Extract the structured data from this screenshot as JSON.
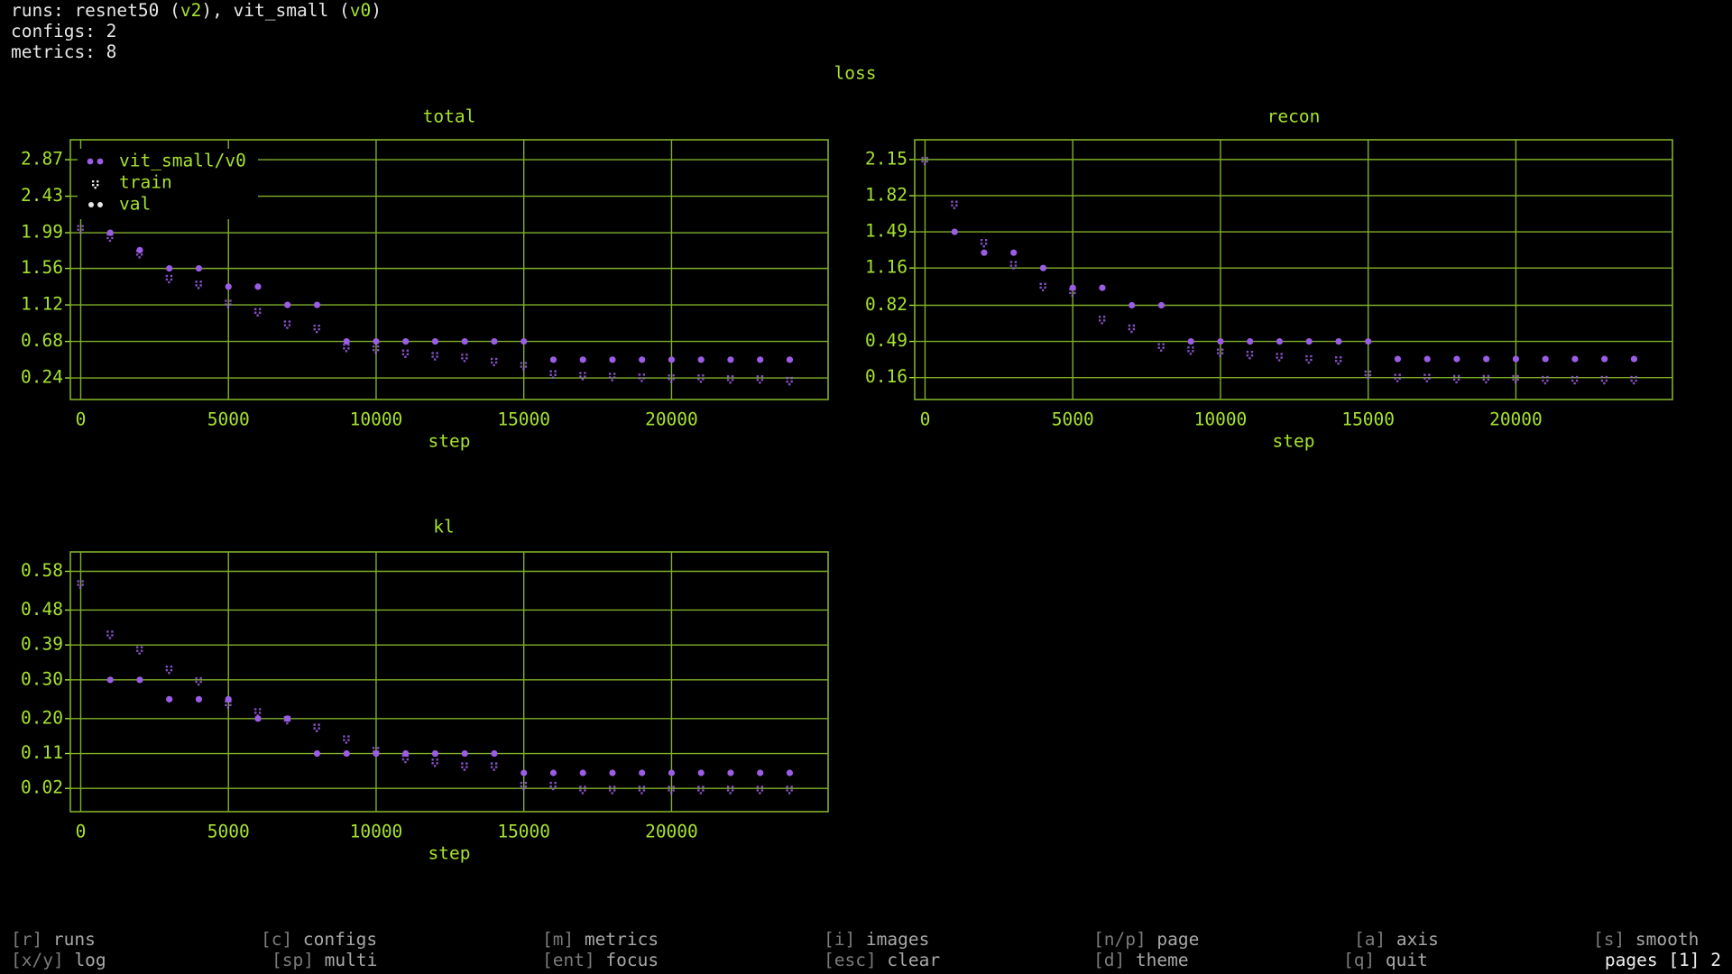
{
  "header": {
    "runs": [
      "runs: resnet50 (",
      "v2",
      "), vit_small (",
      "v0",
      ")"
    ],
    "configs": {
      "label": "configs:",
      "value": 2
    },
    "metrics": {
      "label": "metrics:",
      "value": 8
    }
  },
  "section_title": "loss",
  "chart_data": [
    {
      "type": "scatter",
      "title": "total",
      "xlabel": "step",
      "xlim": [
        -350,
        25300
      ],
      "xticks": [
        0,
        5000,
        10000,
        15000,
        20000
      ],
      "ylim": [
        -0.02,
        3.11
      ],
      "yticks": [
        2.87,
        2.43,
        1.99,
        1.56,
        1.12,
        0.68,
        0.24
      ],
      "grid": true,
      "legend": "upper left",
      "legend_title": "vit_small/v0",
      "series": [
        {
          "name": "train",
          "color": "#9b5de5",
          "x": [
            0,
            1000,
            2000,
            3000,
            4000,
            5000,
            6000,
            7000,
            8000,
            9000,
            10000,
            11000,
            12000,
            13000,
            14000,
            15000,
            16000,
            17000,
            18000,
            19000,
            20000,
            21000,
            22000,
            23000,
            24000
          ],
          "values": [
            2.05,
            1.95,
            1.75,
            1.45,
            1.38,
            1.15,
            1.05,
            0.9,
            0.85,
            0.62,
            0.6,
            0.55,
            0.52,
            0.5,
            0.45,
            0.4,
            0.3,
            0.28,
            0.27,
            0.26,
            0.25,
            0.25,
            0.24,
            0.24,
            0.22
          ]
        },
        {
          "name": "val",
          "color": "#9b5de5",
          "x": [
            1000,
            2000,
            3000,
            4000,
            5000,
            6000,
            7000,
            8000,
            9000,
            10000,
            11000,
            12000,
            13000,
            14000,
            15000,
            16000,
            17000,
            18000,
            19000,
            20000,
            21000,
            22000,
            23000,
            24000
          ],
          "values": [
            1.99,
            1.78,
            1.56,
            1.56,
            1.34,
            1.34,
            1.12,
            1.12,
            0.68,
            0.68,
            0.68,
            0.68,
            0.68,
            0.68,
            0.68,
            0.46,
            0.46,
            0.46,
            0.46,
            0.46,
            0.46,
            0.46,
            0.46,
            0.46
          ]
        }
      ]
    },
    {
      "type": "scatter",
      "title": "recon",
      "xlabel": "step",
      "xlim": [
        -350,
        25300
      ],
      "xticks": [
        0,
        5000,
        10000,
        15000,
        20000
      ],
      "ylim": [
        -0.04,
        2.33
      ],
      "yticks": [
        2.15,
        1.82,
        1.49,
        1.16,
        0.82,
        0.49,
        0.16
      ],
      "grid": true,
      "series": [
        {
          "color": "#9b5de5",
          "x": [
            0,
            1000,
            2000,
            3000,
            4000,
            5000,
            6000,
            7000,
            8000,
            9000,
            10000,
            11000,
            12000,
            13000,
            14000,
            15000,
            16000,
            17000,
            18000,
            19000,
            20000,
            21000,
            22000,
            23000,
            24000
          ],
          "values": [
            2.15,
            1.75,
            1.4,
            1.2,
            1.0,
            0.95,
            0.7,
            0.62,
            0.45,
            0.42,
            0.4,
            0.38,
            0.36,
            0.34,
            0.33,
            0.2,
            0.17,
            0.17,
            0.16,
            0.16,
            0.16,
            0.15,
            0.15,
            0.15,
            0.15
          ]
        },
        {
          "color": "#9b5de5",
          "x": [
            1000,
            2000,
            3000,
            4000,
            5000,
            6000,
            7000,
            8000,
            9000,
            10000,
            11000,
            12000,
            13000,
            14000,
            15000,
            16000,
            17000,
            18000,
            19000,
            20000,
            21000,
            22000,
            23000,
            24000
          ],
          "values": [
            1.49,
            1.3,
            1.3,
            1.16,
            0.98,
            0.98,
            0.82,
            0.82,
            0.49,
            0.49,
            0.49,
            0.49,
            0.49,
            0.49,
            0.49,
            0.33,
            0.33,
            0.33,
            0.33,
            0.33,
            0.33,
            0.33,
            0.33,
            0.33
          ]
        }
      ]
    },
    {
      "type": "scatter",
      "title": "kl",
      "xlabel": "step",
      "xlim": [
        -350,
        25300
      ],
      "xticks": [
        0,
        5000,
        10000,
        15000,
        20000
      ],
      "ylim": [
        -0.04,
        0.63
      ],
      "yticks": [
        0.58,
        0.48,
        0.39,
        {
          "value": 0.3,
          "label": "0.30"
        },
        {
          "value": 0.2,
          "label": "0.20"
        },
        0.11,
        0.02
      ],
      "grid": true,
      "series": [
        {
          "color": "#9b5de5",
          "x": [
            0,
            1000,
            2000,
            3000,
            4000,
            5000,
            6000,
            7000,
            8000,
            9000,
            10000,
            11000,
            12000,
            13000,
            14000,
            15000,
            16000,
            17000,
            18000,
            19000,
            20000,
            21000,
            22000,
            23000,
            24000
          ],
          "values": [
            0.55,
            0.42,
            0.38,
            0.33,
            0.3,
            0.24,
            0.22,
            0.2,
            0.18,
            0.15,
            0.12,
            0.1,
            0.09,
            0.08,
            0.08,
            0.03,
            0.03,
            0.02,
            0.02,
            0.02,
            0.02,
            0.02,
            0.02,
            0.02,
            0.02
          ]
        },
        {
          "color": "#9b5de5",
          "x": [
            1000,
            2000,
            3000,
            4000,
            5000,
            6000,
            7000,
            8000,
            9000,
            10000,
            11000,
            12000,
            13000,
            14000,
            15000,
            16000,
            17000,
            18000,
            19000,
            20000,
            21000,
            22000,
            23000,
            24000
          ],
          "values": [
            0.3,
            0.3,
            0.25,
            0.25,
            0.25,
            0.2,
            0.2,
            0.11,
            0.11,
            0.11,
            0.11,
            0.11,
            0.11,
            0.11,
            0.06,
            0.06,
            0.06,
            0.06,
            0.06,
            0.06,
            0.06,
            0.06,
            0.06,
            0.06
          ]
        }
      ]
    }
  ],
  "footer": {
    "rows": [
      [
        {
          "key": "[r]",
          "label": "runs"
        },
        {
          "key": "[c]",
          "label": "configs"
        },
        {
          "key": "[m]",
          "label": "metrics"
        },
        {
          "key": "[i]",
          "label": "images"
        },
        {
          "key": "[n/p]",
          "label": "page"
        },
        {
          "key": "[a]",
          "label": "axis"
        },
        {
          "key": "[s]",
          "label": "smooth"
        }
      ],
      [
        {
          "key": "[x/y]",
          "label": "log"
        },
        {
          "key": "[sp]",
          "label": "multi"
        },
        {
          "key": "[ent]",
          "label": "focus"
        },
        {
          "key": "[esc]",
          "label": "clear"
        },
        {
          "key": "[d]",
          "label": "theme"
        },
        {
          "key": "[q]",
          "label": "quit"
        }
      ]
    ],
    "pages": {
      "label": "pages",
      "current": "[1]",
      "total": 2
    }
  }
}
